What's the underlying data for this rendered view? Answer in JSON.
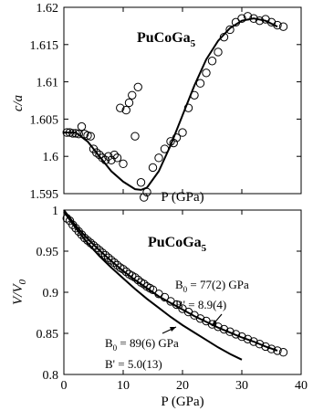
{
  "chart_data": [
    {
      "type": "scatter",
      "title": "PuCoGa",
      "title_sub": "5",
      "xlabel": "P (GPa)",
      "ylabel": "c/a",
      "xlim": [
        0,
        40
      ],
      "ylim": [
        1.595,
        1.62
      ],
      "xticks": [],
      "yticks": [
        "1.595",
        "1.6",
        "1.605",
        "1.61",
        "1.615",
        "1.62"
      ],
      "grid": false,
      "series": [
        {
          "marker": "open-circle",
          "x": [
            0.5,
            1,
            1.5,
            2,
            2.5,
            3,
            3.5,
            4,
            4.5,
            5,
            5.5,
            6,
            6.5,
            7,
            7.5,
            8,
            8.5,
            9,
            9.5,
            10,
            10.5,
            11,
            11.5,
            12,
            12.5,
            13,
            13.5,
            14,
            15,
            16,
            17,
            18,
            18.5,
            19,
            20,
            21,
            22,
            23,
            24,
            25,
            26,
            27,
            28,
            29,
            30,
            31,
            32,
            33,
            34,
            35,
            36,
            37
          ],
          "y": [
            1.6032,
            1.6032,
            1.6031,
            1.6031,
            1.603,
            1.604,
            1.603,
            1.6028,
            1.6027,
            1.601,
            1.6005,
            1.6002,
            1.5998,
            1.5995,
            1.6,
            1.5995,
            1.6002,
            1.5998,
            1.6065,
            1.599,
            1.6062,
            1.6072,
            1.6082,
            1.6027,
            1.6093,
            1.5965,
            1.5945,
            1.5952,
            1.5985,
            1.5998,
            1.601,
            1.602,
            1.6018,
            1.6025,
            1.6032,
            1.6065,
            1.6082,
            1.6098,
            1.6112,
            1.6128,
            1.614,
            1.616,
            1.617,
            1.618,
            1.6185,
            1.6188,
            1.6185,
            1.6182,
            1.6184,
            1.618,
            1.6176,
            1.6174
          ]
        },
        {
          "marker": "line",
          "x": [
            0,
            2,
            4,
            6,
            8,
            10,
            12,
            13,
            14,
            16,
            18,
            20,
            22,
            24,
            26,
            28,
            30,
            32,
            34,
            36
          ],
          "y": [
            1.6032,
            1.6032,
            1.602,
            1.6,
            1.598,
            1.5966,
            1.5956,
            1.5955,
            1.5958,
            1.598,
            1.6015,
            1.6055,
            1.6095,
            1.613,
            1.6155,
            1.6172,
            1.6182,
            1.6185,
            1.6182,
            1.6174
          ]
        }
      ]
    },
    {
      "type": "scatter",
      "title": "PuCoGa",
      "title_sub": "5",
      "xlabel": "P (GPa)",
      "ylabel": "V/V",
      "ylabel_sub": "0",
      "xlim": [
        0,
        40
      ],
      "ylim": [
        0.8,
        1.0
      ],
      "xticks": [
        "0",
        "10",
        "20",
        "30",
        "40"
      ],
      "yticks": [
        "0.8",
        "0.85",
        "0.9",
        "0.95",
        "1"
      ],
      "grid": false,
      "series": [
        {
          "marker": "open-circle",
          "x": [
            0.5,
            1,
            1.5,
            2,
            2.5,
            3,
            3.5,
            4,
            4.5,
            5,
            5.5,
            6,
            6.5,
            7,
            7.5,
            8,
            8.5,
            9,
            9.5,
            10,
            10.5,
            11,
            11.5,
            12,
            12.5,
            13,
            13.5,
            14,
            14.5,
            15,
            16,
            17,
            18,
            19,
            20,
            21,
            22,
            23,
            24,
            25,
            26,
            27,
            28,
            29,
            30,
            31,
            32,
            33,
            34,
            35,
            36,
            37
          ],
          "y": [
            0.99,
            0.987,
            0.982,
            0.978,
            0.974,
            0.97,
            0.966,
            0.963,
            0.96,
            0.957,
            0.954,
            0.951,
            0.948,
            0.945,
            0.942,
            0.939,
            0.936,
            0.933,
            0.93,
            0.928,
            0.925,
            0.922,
            0.92,
            0.918,
            0.915,
            0.912,
            0.91,
            0.907,
            0.905,
            0.903,
            0.898,
            0.894,
            0.889,
            0.885,
            0.88,
            0.876,
            0.872,
            0.868,
            0.865,
            0.861,
            0.858,
            0.855,
            0.852,
            0.849,
            0.846,
            0.843,
            0.84,
            0.837,
            0.834,
            0.831,
            0.829,
            0.827
          ]
        },
        {
          "name": "B0 = 77(2) GPa, B' = 8.9(4)",
          "marker": "line",
          "x": [
            0,
            2,
            4,
            6,
            8,
            10,
            12,
            14,
            16,
            18,
            20,
            22,
            24,
            26,
            28,
            30,
            32,
            34,
            36
          ],
          "y": [
            1.0,
            0.981,
            0.965,
            0.951,
            0.938,
            0.926,
            0.915,
            0.905,
            0.895,
            0.887,
            0.879,
            0.871,
            0.864,
            0.857,
            0.851,
            0.845,
            0.84,
            0.834,
            0.829
          ]
        },
        {
          "name": "B0 = 89(6) GPa, B' = 5.0(13)",
          "marker": "line",
          "x": [
            0,
            2,
            4,
            6,
            8,
            10,
            12,
            14,
            16,
            18,
            20,
            22,
            24,
            26,
            28,
            30
          ],
          "y": [
            0.998,
            0.978,
            0.96,
            0.944,
            0.93,
            0.917,
            0.904,
            0.892,
            0.881,
            0.87,
            0.86,
            0.851,
            0.842,
            0.833,
            0.825,
            0.818
          ]
        }
      ],
      "annotations": [
        {
          "lines": [
            "B",
            "0",
            " = 77(2) GPa"
          ],
          "line2": "B' = 8.9(4)"
        },
        {
          "lines": [
            "B",
            "0",
            " = 89(6) GPa"
          ],
          "line2": "B' = 5.0(13)"
        }
      ]
    }
  ]
}
